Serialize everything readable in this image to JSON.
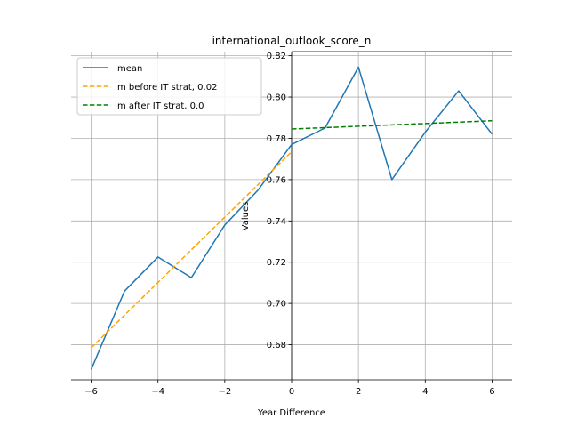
{
  "chart_data": {
    "type": "line",
    "title": "international_outlook_score_n",
    "xlabel": "Year Difference",
    "ylabel": "Values",
    "xlim": [
      -6.6,
      6.6
    ],
    "ylim": [
      0.663,
      0.822
    ],
    "xticks": [
      -6,
      -4,
      -2,
      0,
      2,
      4,
      6
    ],
    "xtick_labels": [
      "−6",
      "−4",
      "−2",
      "0",
      "2",
      "4",
      "6"
    ],
    "yticks": [
      0.68,
      0.7,
      0.72,
      0.74,
      0.76,
      0.78,
      0.8,
      0.82
    ],
    "ytick_labels": [
      "0.68",
      "0.70",
      "0.72",
      "0.74",
      "0.76",
      "0.78",
      "0.80",
      "0.82"
    ],
    "grid": true,
    "legend_position": "top-left",
    "series": [
      {
        "name": "mean",
        "style": "solid",
        "color": "#1f77b4",
        "x": [
          -6,
          -5,
          -4,
          -3,
          -2,
          -1,
          0,
          1,
          2,
          3,
          4,
          5,
          6
        ],
        "y": [
          0.668,
          0.706,
          0.7225,
          0.7125,
          0.738,
          0.755,
          0.777,
          0.785,
          0.8145,
          0.76,
          0.783,
          0.803,
          0.782
        ]
      },
      {
        "name": "m before IT strat, 0.02",
        "style": "dashed",
        "color": "#ffa500",
        "x": [
          -6,
          0
        ],
        "y": [
          0.6785,
          0.7735
        ]
      },
      {
        "name": "m after IT strat, 0.0",
        "style": "dashed",
        "color": "#008000",
        "x": [
          0,
          6
        ],
        "y": [
          0.7845,
          0.7885
        ]
      }
    ]
  }
}
